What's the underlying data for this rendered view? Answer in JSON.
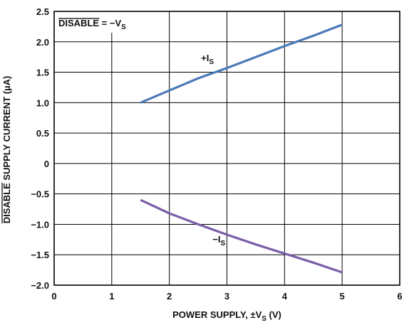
{
  "chart_data": {
    "type": "line",
    "title": "",
    "xlabel": {
      "pre": "POWER SUPPLY, ±V",
      "sub": "S",
      "post": " (V)"
    },
    "ylabel": {
      "overlined": "DISABLE",
      "rest": " SUPPLY CURRENT (µA)"
    },
    "xlim": [
      0,
      6
    ],
    "ylim": [
      -2.0,
      2.5
    ],
    "xticks": [
      "0",
      "1",
      "2",
      "3",
      "4",
      "5",
      "6"
    ],
    "yticks": [
      "2.5",
      "2.0",
      "1.5",
      "1.0",
      "0.5",
      "0",
      "−0.5",
      "−1.0",
      "−1.5",
      "−2.0"
    ],
    "grid": true,
    "legend_box": {
      "overlined": "DISABLE",
      "rest": " = −V",
      "sub": "S"
    },
    "series": [
      {
        "name": "+I",
        "name_sub": "S",
        "color": "#4a7ab8",
        "x": [
          1.5,
          2.0,
          2.5,
          3.0,
          3.5,
          4.0,
          4.5,
          5.0
        ],
        "y": [
          1.0,
          1.2,
          1.4,
          1.57,
          1.75,
          1.93,
          2.1,
          2.28
        ]
      },
      {
        "name": "−I",
        "name_sub": "S",
        "color": "#7b5ea7",
        "x": [
          1.5,
          2.0,
          2.5,
          3.0,
          3.5,
          4.0,
          4.5,
          5.0
        ],
        "y": [
          -0.6,
          -0.82,
          -1.0,
          -1.17,
          -1.33,
          -1.48,
          -1.63,
          -1.79
        ]
      }
    ]
  }
}
